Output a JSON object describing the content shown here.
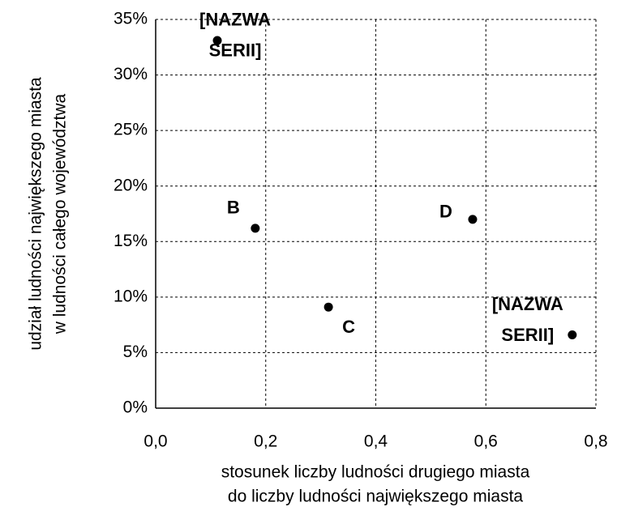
{
  "chart_data": {
    "type": "scatter",
    "xlabel": [
      "stosunek liczby ludności drugiego miasta",
      "do liczby ludności największego miasta"
    ],
    "ylabel": [
      "udział ludności największego miasta",
      "w ludności całego województwa"
    ],
    "x": [
      0.112,
      0.181,
      0.314,
      0.576,
      0.757
    ],
    "values": [
      33.1,
      16.2,
      9.1,
      17.0,
      6.6
    ],
    "labels": [
      "[NAZWA SERII]",
      "B",
      "C",
      "D",
      "[NAZWA SERII]"
    ],
    "color": "#000000",
    "xlim": [
      0,
      0.8
    ],
    "xticks": [
      {
        "value": 0,
        "label": "0,0"
      },
      {
        "value": 0.2,
        "label": "0,2"
      },
      {
        "value": 0.4,
        "label": "0,4"
      },
      {
        "value": 0.6,
        "label": "0,6"
      },
      {
        "value": 0.8,
        "label": "0,8"
      }
    ],
    "ylim": [
      0,
      35
    ],
    "yticks": [
      {
        "value": 0,
        "label": "0%"
      },
      {
        "value": 5,
        "label": "5%"
      },
      {
        "value": 10,
        "label": "10%"
      },
      {
        "value": 15,
        "label": "15%"
      },
      {
        "value": 20,
        "label": "20%"
      },
      {
        "value": 25,
        "label": "25%"
      },
      {
        "value": 30,
        "label": "30%"
      },
      {
        "value": 35,
        "label": "35%"
      }
    ],
    "grid": true
  }
}
